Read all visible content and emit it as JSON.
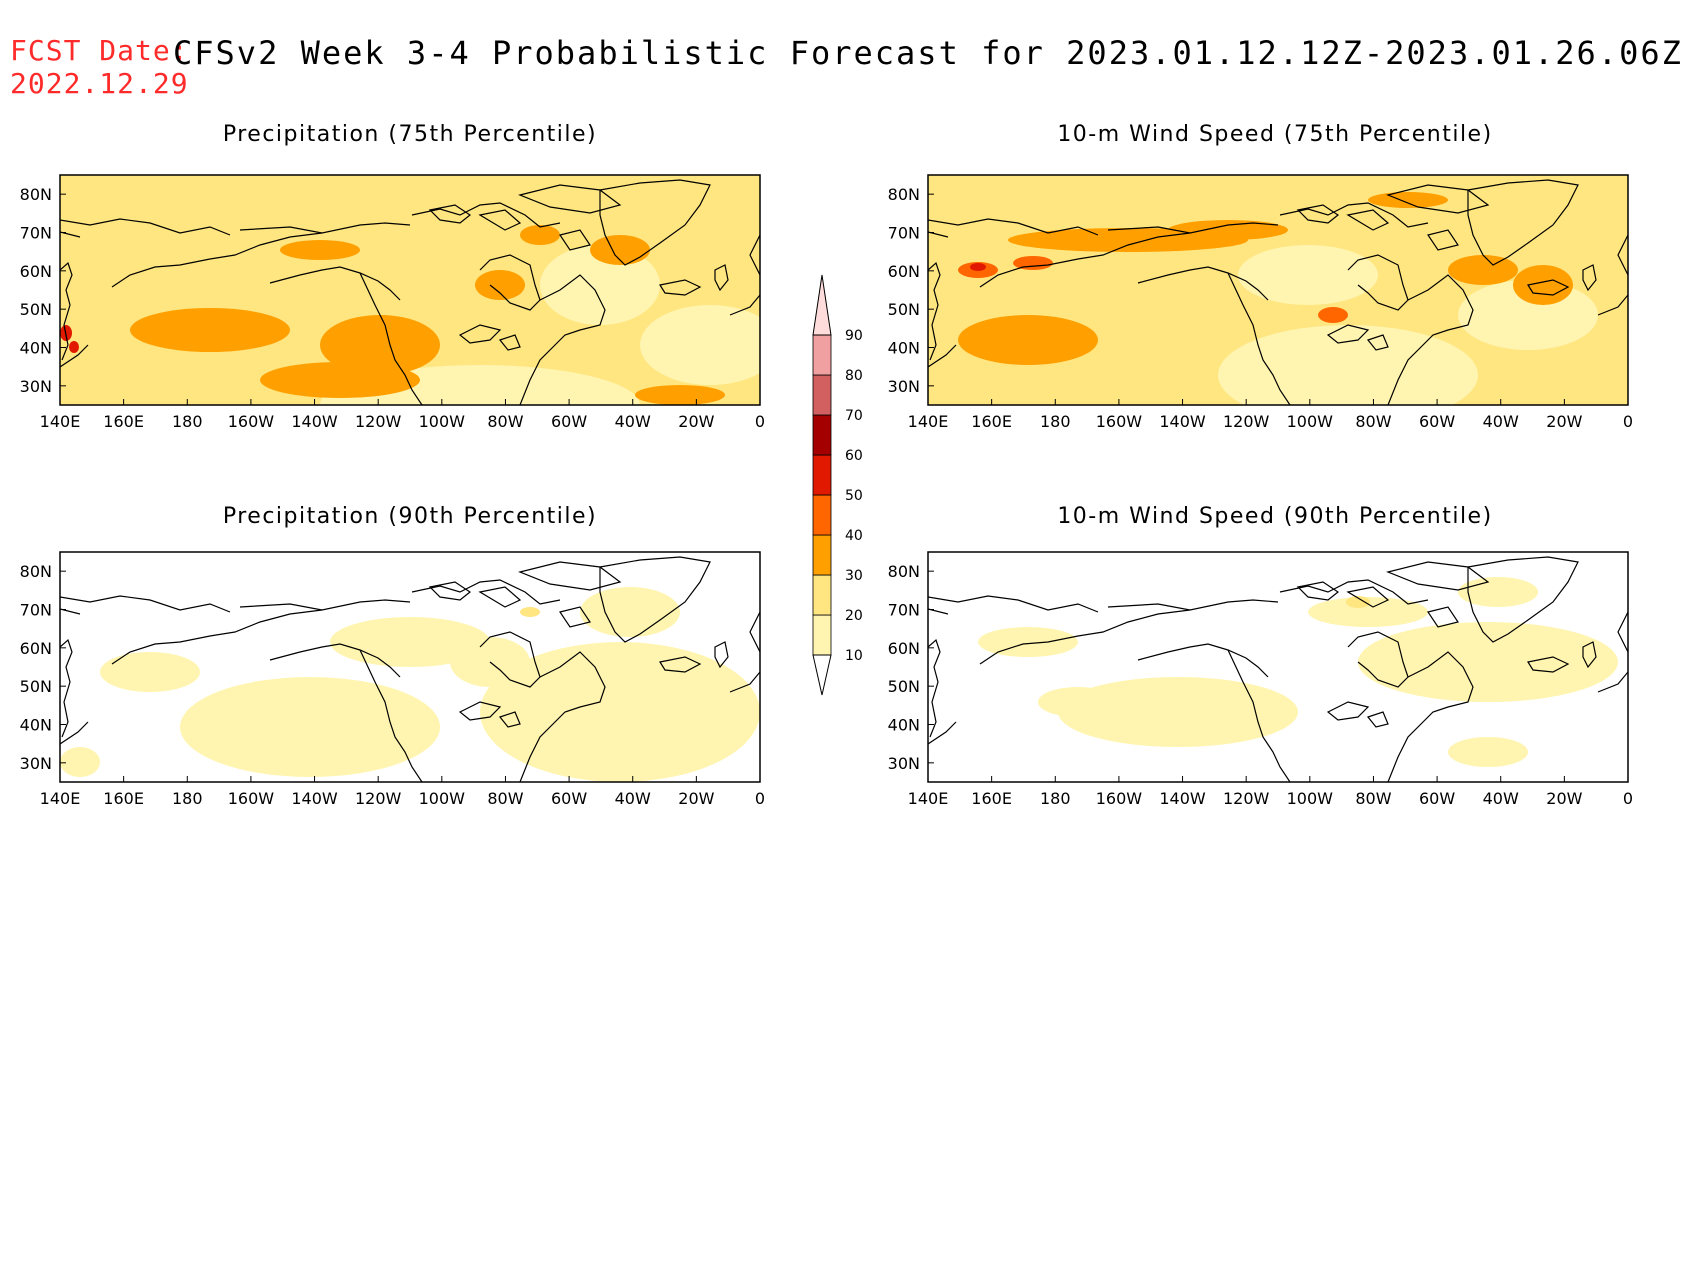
{
  "header": {
    "fcst_label": "FCST Date:",
    "fcst_date": "2022.12.29",
    "title": "CFSv2 Week 3-4 Probabilistic Forecast for 2023.01.12.12Z-2023.01.26.06Z"
  },
  "panels": [
    {
      "title": "Precipitation (75th Percentile)"
    },
    {
      "title": "10-m Wind Speed (75th Percentile)"
    },
    {
      "title": "Precipitation (90th Percentile)"
    },
    {
      "title": "10-m Wind Speed (90th Percentile)"
    }
  ],
  "axes": {
    "lat_labels": [
      "80N",
      "70N",
      "60N",
      "50N",
      "40N",
      "30N"
    ],
    "lat_values": [
      80,
      70,
      60,
      50,
      40,
      30
    ],
    "lon_labels": [
      "140E",
      "160E",
      "180",
      "160W",
      "140W",
      "120W",
      "100W",
      "80W",
      "60W",
      "40W",
      "20W",
      "0"
    ],
    "lon_values": [
      140,
      160,
      180,
      200,
      220,
      240,
      260,
      280,
      300,
      320,
      340,
      360
    ],
    "lat_range": [
      25,
      85
    ],
    "lon_range": [
      140,
      360
    ]
  },
  "colorbar": {
    "levels": [
      "10",
      "20",
      "30",
      "40",
      "50",
      "60",
      "70",
      "80",
      "90"
    ],
    "colors": [
      "#fff5b0",
      "#ffe680",
      "#ff9f00",
      "#ff6600",
      "#e01900",
      "#a50000",
      "#d36060",
      "#f0a0a0",
      "#ffdcdc"
    ]
  }
}
